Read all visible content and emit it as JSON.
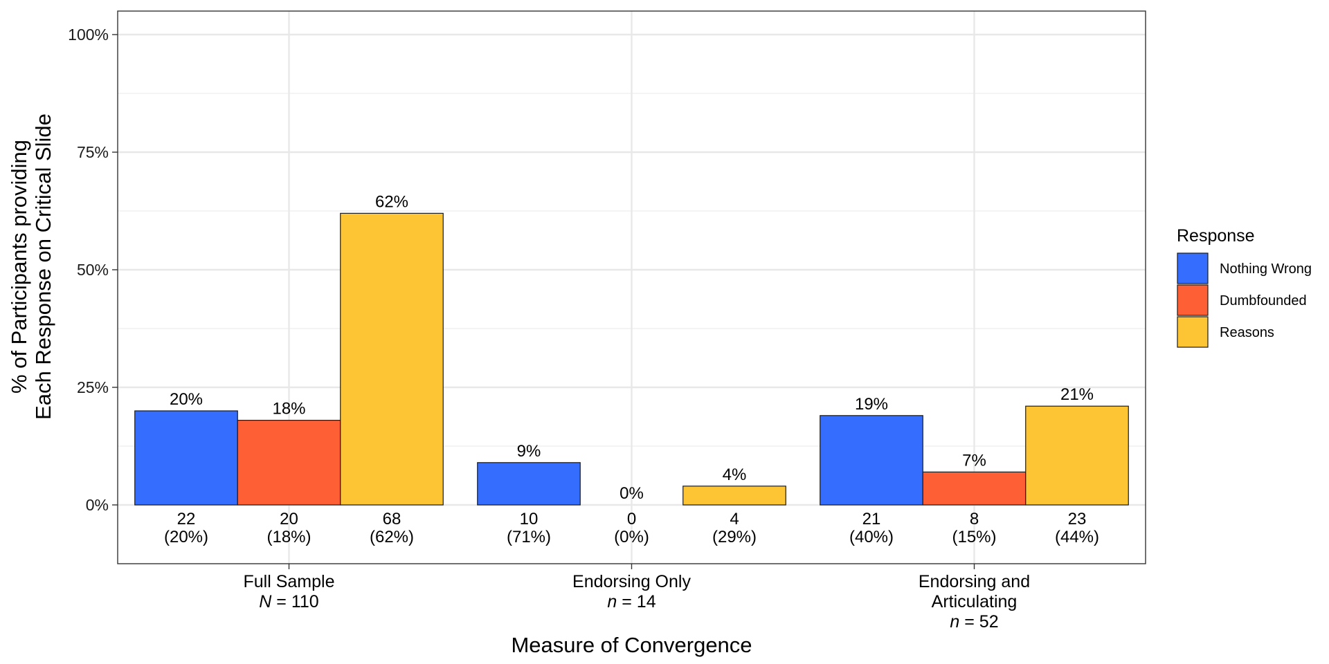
{
  "chart_data": {
    "type": "bar",
    "xlabel": "Measure of Convergence",
    "ylabel_lines": [
      "% of Participants providing",
      "Each Response on Critical Slide"
    ],
    "ylim": [
      -0.125,
      1.05
    ],
    "y_ticks": [
      0,
      0.25,
      0.5,
      0.75,
      1.0
    ],
    "y_tick_labels": [
      "0%",
      "25%",
      "50%",
      "75%",
      "100%"
    ],
    "grid": true,
    "legend_position": "right",
    "legend_title": "Response",
    "series": [
      {
        "name": "Nothing Wrong",
        "color": "#356EFF"
      },
      {
        "name": "Dumbfounded",
        "color": "#FF5F35"
      },
      {
        "name": "Reasons",
        "color": "#FDC434"
      }
    ],
    "groups": [
      {
        "label_lines": [
          "Full Sample"
        ],
        "n_symbol": "N",
        "n_rest": " = 110",
        "bars": [
          {
            "series": "Nothing Wrong",
            "value": 0.2,
            "label": "20%",
            "count": "22",
            "count_pct": "(20%)"
          },
          {
            "series": "Dumbfounded",
            "value": 0.18,
            "label": "18%",
            "count": "20",
            "count_pct": "(18%)"
          },
          {
            "series": "Reasons",
            "value": 0.62,
            "label": "62%",
            "count": "68",
            "count_pct": "(62%)"
          }
        ]
      },
      {
        "label_lines": [
          "Endorsing Only"
        ],
        "n_symbol": "n",
        "n_rest": " = 14",
        "bars": [
          {
            "series": "Nothing Wrong",
            "value": 0.09,
            "label": "9%",
            "count": "10",
            "count_pct": "(71%)"
          },
          {
            "series": "Dumbfounded",
            "value": 0.0,
            "label": "0%",
            "count": "0",
            "count_pct": "(0%)"
          },
          {
            "series": "Reasons",
            "value": 0.04,
            "label": "4%",
            "count": "4",
            "count_pct": "(29%)"
          }
        ]
      },
      {
        "label_lines": [
          "Endorsing and",
          "Articulating"
        ],
        "n_symbol": "n",
        "n_rest": " = 52",
        "bars": [
          {
            "series": "Nothing Wrong",
            "value": 0.19,
            "label": "19%",
            "count": "21",
            "count_pct": "(40%)"
          },
          {
            "series": "Dumbfounded",
            "value": 0.07,
            "label": "7%",
            "count": "8",
            "count_pct": "(15%)"
          },
          {
            "series": "Reasons",
            "value": 0.21,
            "label": "21%",
            "count": "23",
            "count_pct": "(44%)"
          }
        ]
      }
    ]
  }
}
